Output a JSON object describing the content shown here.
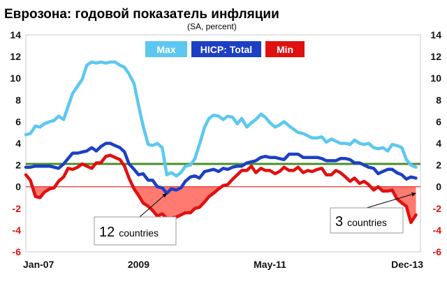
{
  "chart_data": {
    "type": "line",
    "title": "Еврозона: годовой показатель инфляции",
    "subtitle": "(SA, percent)",
    "xlabel": "",
    "ylabel": "",
    "ylim": [
      -6,
      14
    ],
    "y_ticks": [
      "14",
      "12",
      "10",
      "8",
      "6",
      "4",
      "2",
      "0",
      "-2",
      "-4",
      "-6"
    ],
    "y_ticks_right": [
      "14",
      "12",
      "10",
      "8",
      "6",
      "4",
      "2",
      "0",
      "-2",
      "-4",
      "-6"
    ],
    "x_range": [
      2007.0,
      2014.0
    ],
    "x_tick_labels": [
      {
        "label": "Jan-07",
        "x": 2007.0
      },
      {
        "label": "2009",
        "x": 2009.0
      },
      {
        "label": "May-11",
        "x": 2011.33
      },
      {
        "label": "Dec-13",
        "x": 2013.92
      }
    ],
    "grid": false,
    "legend_placement": "top-center",
    "reference_lines": [
      {
        "y": 2.1,
        "color": "#4a8f2a"
      },
      {
        "y": 0,
        "color": "#e02020"
      }
    ],
    "shaded_region": {
      "series": "Min",
      "below": 0,
      "color": "#ff7a70"
    },
    "series": [
      {
        "name": "Max",
        "color": "#5cc8f0",
        "x": [
          2007.0,
          2007.08,
          2007.17,
          2007.25,
          2007.33,
          2007.42,
          2007.5,
          2007.58,
          2007.67,
          2007.75,
          2007.83,
          2007.92,
          2008.0,
          2008.08,
          2008.17,
          2008.25,
          2008.33,
          2008.42,
          2008.5,
          2008.58,
          2008.67,
          2008.75,
          2008.83,
          2008.92,
          2009.0,
          2009.08,
          2009.17,
          2009.25,
          2009.33,
          2009.42,
          2009.5,
          2009.58,
          2009.67,
          2009.75,
          2009.83,
          2009.92,
          2010.0,
          2010.08,
          2010.17,
          2010.25,
          2010.33,
          2010.42,
          2010.5,
          2010.58,
          2010.67,
          2010.75,
          2010.83,
          2010.92,
          2011.0,
          2011.08,
          2011.17,
          2011.25,
          2011.33,
          2011.42,
          2011.5,
          2011.58,
          2011.67,
          2011.75,
          2011.83,
          2011.92,
          2012.0,
          2012.08,
          2012.17,
          2012.25,
          2012.33,
          2012.42,
          2012.5,
          2012.58,
          2012.67,
          2012.75,
          2012.83,
          2012.92,
          2013.0,
          2013.08,
          2013.17,
          2013.25,
          2013.33,
          2013.42,
          2013.5,
          2013.58,
          2013.67,
          2013.75,
          2013.83,
          2013.92
        ],
        "values": [
          4.8,
          4.9,
          5.6,
          5.5,
          5.8,
          6.0,
          6.1,
          6.5,
          6.2,
          7.4,
          8.6,
          9.3,
          9.9,
          11.2,
          11.5,
          11.4,
          11.5,
          11.4,
          11.5,
          11.5,
          11.2,
          11.0,
          10.4,
          9.5,
          7.5,
          5.6,
          3.9,
          3.8,
          4.0,
          3.6,
          1.1,
          1.3,
          1.0,
          1.3,
          1.9,
          2.0,
          2.6,
          3.9,
          5.5,
          6.3,
          6.6,
          6.5,
          6.2,
          6.5,
          6.4,
          5.8,
          6.3,
          5.5,
          5.9,
          6.2,
          6.7,
          6.4,
          5.9,
          5.5,
          5.7,
          6.0,
          5.6,
          5.3,
          5.0,
          4.9,
          4.7,
          4.5,
          4.5,
          4.6,
          4.1,
          4.4,
          4.2,
          4.0,
          4.0,
          3.9,
          4.3,
          4.0,
          3.9,
          4.0,
          3.6,
          3.5,
          3.6,
          3.3,
          3.9,
          3.8,
          3.6,
          2.5,
          2.0,
          1.8
        ]
      },
      {
        "name": "HICP: Total",
        "color": "#1c3fc4",
        "x": [
          2007.0,
          2007.08,
          2007.17,
          2007.25,
          2007.33,
          2007.42,
          2007.5,
          2007.58,
          2007.67,
          2007.75,
          2007.83,
          2007.92,
          2008.0,
          2008.08,
          2008.17,
          2008.25,
          2008.33,
          2008.42,
          2008.5,
          2008.58,
          2008.67,
          2008.75,
          2008.83,
          2008.92,
          2009.0,
          2009.08,
          2009.17,
          2009.25,
          2009.33,
          2009.42,
          2009.5,
          2009.58,
          2009.67,
          2009.75,
          2009.83,
          2009.92,
          2010.0,
          2010.08,
          2010.17,
          2010.25,
          2010.33,
          2010.42,
          2010.5,
          2010.58,
          2010.67,
          2010.75,
          2010.83,
          2010.92,
          2011.0,
          2011.08,
          2011.17,
          2011.25,
          2011.33,
          2011.42,
          2011.5,
          2011.58,
          2011.67,
          2011.75,
          2011.83,
          2011.92,
          2012.0,
          2012.08,
          2012.17,
          2012.25,
          2012.33,
          2012.42,
          2012.5,
          2012.58,
          2012.67,
          2012.75,
          2012.83,
          2012.92,
          2013.0,
          2013.08,
          2013.17,
          2013.25,
          2013.33,
          2013.42,
          2013.5,
          2013.58,
          2013.67,
          2013.75,
          2013.83,
          2013.92
        ],
        "values": [
          1.8,
          1.8,
          1.9,
          1.9,
          1.9,
          1.9,
          1.8,
          1.7,
          2.1,
          2.6,
          3.1,
          3.1,
          3.2,
          3.3,
          3.6,
          3.3,
          3.7,
          4.0,
          4.0,
          3.8,
          3.6,
          3.2,
          2.1,
          1.6,
          1.1,
          1.2,
          0.6,
          0.6,
          0.0,
          -0.1,
          -0.6,
          -0.2,
          -0.3,
          -0.1,
          0.5,
          0.9,
          1.0,
          0.8,
          1.4,
          1.5,
          1.6,
          1.4,
          1.7,
          1.6,
          1.8,
          1.9,
          1.9,
          2.2,
          2.3,
          2.4,
          2.7,
          2.8,
          2.7,
          2.7,
          2.6,
          2.5,
          3.0,
          3.0,
          3.0,
          2.7,
          2.7,
          2.7,
          2.7,
          2.6,
          2.4,
          2.4,
          2.4,
          2.6,
          2.6,
          2.5,
          2.2,
          2.2,
          2.0,
          1.8,
          1.7,
          1.2,
          1.4,
          1.6,
          1.6,
          1.3,
          1.1,
          0.7,
          0.9,
          0.8
        ]
      },
      {
        "name": "Min",
        "color": "#e01010",
        "x": [
          2007.0,
          2007.08,
          2007.17,
          2007.25,
          2007.33,
          2007.42,
          2007.5,
          2007.58,
          2007.67,
          2007.75,
          2007.83,
          2007.92,
          2008.0,
          2008.08,
          2008.17,
          2008.25,
          2008.33,
          2008.42,
          2008.5,
          2008.58,
          2008.67,
          2008.75,
          2008.83,
          2008.92,
          2009.0,
          2009.08,
          2009.17,
          2009.25,
          2009.33,
          2009.42,
          2009.5,
          2009.58,
          2009.67,
          2009.75,
          2009.83,
          2009.92,
          2010.0,
          2010.08,
          2010.17,
          2010.25,
          2010.33,
          2010.42,
          2010.5,
          2010.58,
          2010.67,
          2010.75,
          2010.83,
          2010.92,
          2011.0,
          2011.08,
          2011.17,
          2011.25,
          2011.33,
          2011.42,
          2011.5,
          2011.58,
          2011.67,
          2011.75,
          2011.83,
          2011.92,
          2012.0,
          2012.08,
          2012.17,
          2012.25,
          2012.33,
          2012.42,
          2012.5,
          2012.58,
          2012.67,
          2012.75,
          2012.83,
          2012.92,
          2013.0,
          2013.08,
          2013.17,
          2013.25,
          2013.33,
          2013.42,
          2013.5,
          2013.58,
          2013.67,
          2013.75,
          2013.83,
          2013.92
        ],
        "values": [
          1.1,
          0.6,
          -0.9,
          -1.0,
          -0.5,
          -0.2,
          -0.1,
          0.5,
          0.9,
          1.7,
          1.6,
          1.8,
          2.1,
          1.9,
          1.7,
          2.2,
          2.2,
          2.8,
          2.9,
          2.7,
          2.5,
          1.9,
          0.8,
          -0.2,
          -0.8,
          -1.5,
          -1.8,
          -2.2,
          -2.7,
          -2.5,
          -2.9,
          -2.9,
          -2.8,
          -2.6,
          -2.4,
          -2.4,
          -2.0,
          -1.9,
          -1.4,
          -0.9,
          -0.6,
          -0.2,
          0.1,
          0.2,
          0.7,
          1.1,
          1.5,
          1.5,
          1.9,
          1.3,
          1.7,
          1.5,
          1.5,
          1.2,
          1.4,
          1.8,
          1.5,
          1.5,
          1.8,
          1.3,
          1.5,
          1.4,
          1.6,
          1.7,
          1.1,
          1.1,
          1.5,
          1.3,
          0.9,
          0.5,
          0.8,
          0.3,
          0.5,
          0.2,
          -0.3,
          0.0,
          -0.4,
          -0.4,
          -0.3,
          -1.1,
          -1.5,
          -1.8,
          -3.3,
          -2.6
        ]
      }
    ],
    "annotations": [
      {
        "count": "12",
        "text": "countries",
        "points_to": [
          2009.5,
          -0.6
        ]
      },
      {
        "count": "3",
        "text": "countries",
        "points_to": [
          2013.92,
          -0.6
        ]
      }
    ]
  }
}
